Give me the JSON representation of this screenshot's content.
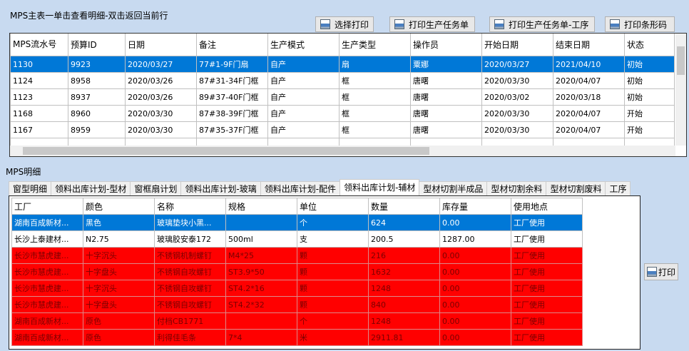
{
  "master": {
    "title": "MPS主表一单击查看明细-双击返回当前行",
    "buttons": [
      "选择打印",
      "打印生产任务单",
      "打印生产任务单-工序",
      "打印条形码"
    ],
    "columns": [
      "MPS流水号",
      "预算ID",
      "日期",
      "备注",
      "生产模式",
      "生产类型",
      "操作员",
      "开始日期",
      "结束日期",
      "状态"
    ],
    "rows": [
      [
        "1130",
        "9923",
        "2020/03/27",
        "77#1-9F门扇",
        "自产",
        "扇",
        "粟娜",
        "2020/03/27",
        "2021/04/10",
        "初始"
      ],
      [
        "1124",
        "8958",
        "2020/03/26",
        "87#31-34F门框",
        "自产",
        "框",
        "唐曙",
        "2020/03/30",
        "2020/04/07",
        "初始"
      ],
      [
        "1123",
        "8937",
        "2020/03/26",
        "89#37-40F门框",
        "自产",
        "框",
        "唐曙",
        "2020/03/02",
        "2020/03/18",
        "初始"
      ],
      [
        "1168",
        "8960",
        "2020/03/30",
        "87#38-39F门框",
        "自产",
        "框",
        "唐曙",
        "2020/03/30",
        "2020/04/07",
        "开始"
      ],
      [
        "1167",
        "8959",
        "2020/03/30",
        "87#35-37F门框",
        "自产",
        "框",
        "唐曙",
        "2020/03/30",
        "2020/04/07",
        "开始"
      ]
    ],
    "selected_index": 0
  },
  "detail": {
    "title": "MPS明细",
    "tabs": [
      "窗型明细",
      "领料出库计划-型材",
      "窗框扇计划",
      "领料出库计划-玻璃",
      "领料出库计划-配件",
      "领料出库计划-辅材",
      "型材切割半成品",
      "型材切割余料",
      "型材切割废料",
      "工序"
    ],
    "active_tab": 5,
    "columns": [
      "工厂",
      "颜色",
      "名称",
      "规格",
      "单位",
      "数量",
      "库存量",
      "使用地点"
    ],
    "rows": [
      [
        "湖南百成新材...",
        "黑色",
        "玻璃垫块小黑...",
        "",
        "个",
        "624",
        "0.00",
        "工厂使用"
      ],
      [
        "长沙上泰建材...",
        "N2.75",
        "玻璃胶安泰172",
        "500ml",
        "支",
        "200.5",
        "1287.00",
        "工厂使用"
      ],
      [
        "长沙市慧虎建...",
        "十字沉头",
        "不锈钢机制螺钉",
        "M4*25",
        "颗",
        "216",
        "0.00",
        "工厂使用"
      ],
      [
        "长沙市慧虎建...",
        "十字盘头",
        "不锈钢自攻螺钉",
        "ST3.9*50",
        "颗",
        "1632",
        "0.00",
        "工厂使用"
      ],
      [
        "长沙市慧虎建...",
        "十字沉头",
        "不锈钢自攻螺钉",
        "ST4.2*16",
        "颗",
        "1248",
        "0.00",
        "工厂使用"
      ],
      [
        "长沙市慧虎建...",
        "十字盘头",
        "不锈钢自攻螺钉",
        "ST4.2*32",
        "颗",
        "840",
        "0.00",
        "工厂使用"
      ],
      [
        "湖南百成新材...",
        "原色",
        "付档CB1771",
        "",
        "个",
        "1248",
        "0.00",
        "工厂使用"
      ],
      [
        "湖南百成新材...",
        "原色",
        "利得佳毛条",
        "7*4",
        "米",
        "2911.81",
        "0.00",
        "工厂使用"
      ]
    ],
    "row_styles": [
      "selected",
      "normal",
      "red",
      "red",
      "red",
      "red",
      "red",
      "red"
    ],
    "print_label": "打印"
  },
  "colors": {
    "background": "#c8daf0",
    "selection": "#0078d7",
    "warning_row": "#ff0000"
  }
}
